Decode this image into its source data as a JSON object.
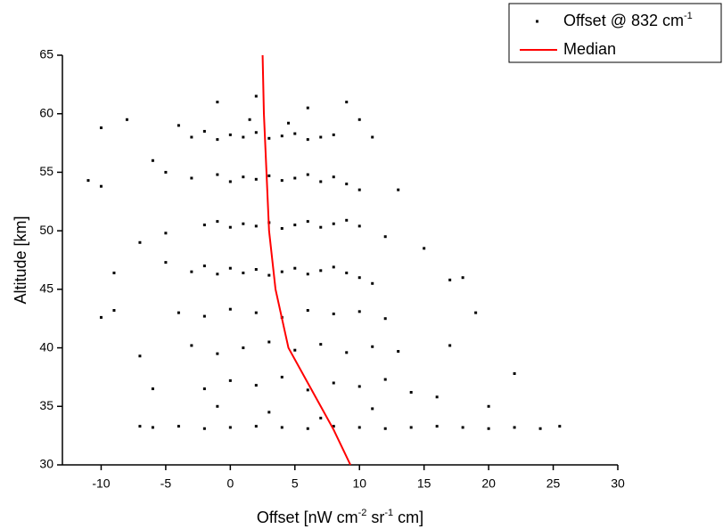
{
  "chart_data": {
    "type": "scatter",
    "xlabel": [
      "Offset [nW cm",
      "-2",
      " sr",
      "-1",
      " cm]"
    ],
    "ylabel": "Altitude [km]",
    "xlim": [
      -13,
      30
    ],
    "xticks": [
      -10,
      -5,
      0,
      5,
      10,
      15,
      20,
      25,
      30
    ],
    "ylim": [
      30,
      65
    ],
    "yticks": [
      30,
      35,
      40,
      45,
      50,
      55,
      60,
      65
    ],
    "legend": "top-right",
    "series": [
      {
        "name": [
          "Offset @ 832 cm",
          "-1"
        ],
        "color": "#000000",
        "kind": "points",
        "x": [
          -3,
          -2,
          -1,
          0,
          1,
          2,
          3,
          4,
          5,
          6,
          7,
          8,
          -4,
          1.5,
          4.5,
          6,
          2,
          -1,
          9,
          10,
          -8,
          -10,
          11,
          -3,
          -1,
          0,
          1,
          2,
          3,
          4,
          5,
          6,
          7,
          8,
          9,
          -5,
          10,
          -10,
          -11,
          13,
          -6,
          -2,
          -1,
          0,
          1,
          2,
          3,
          4,
          5,
          6,
          7,
          8,
          9,
          10,
          -5,
          -7,
          12,
          15,
          -3,
          -2,
          -1,
          0,
          1,
          2,
          3,
          4,
          5,
          6,
          7,
          8,
          9,
          10,
          11,
          -5,
          -9,
          17,
          18,
          -4,
          -2,
          0,
          2,
          4,
          6,
          8,
          10,
          12,
          -10,
          -9,
          19,
          -3,
          -1,
          1,
          3,
          5,
          7,
          9,
          11,
          13,
          -7,
          17,
          -2,
          0,
          2,
          4,
          6,
          8,
          10,
          12,
          14,
          16,
          -6,
          22,
          20,
          -6,
          -4,
          -2,
          0,
          2,
          4,
          6,
          8,
          10,
          12,
          14,
          16,
          18,
          20,
          22,
          24,
          25.5,
          -7,
          3,
          7,
          11,
          -1
        ],
        "values": [
          58,
          58.5,
          57.8,
          58.2,
          58,
          58.4,
          57.9,
          58.1,
          58.3,
          57.8,
          58,
          58.2,
          59,
          59.5,
          59.2,
          60.5,
          61.5,
          61,
          61,
          59.5,
          59.5,
          58.8,
          58,
          54.5,
          54.8,
          54.2,
          54.6,
          54.4,
          54.7,
          54.3,
          54.5,
          54.8,
          54.2,
          54.6,
          54,
          55,
          53.5,
          53.8,
          54.3,
          53.5,
          56,
          50.5,
          50.8,
          50.3,
          50.6,
          50.4,
          50.7,
          50.2,
          50.5,
          50.8,
          50.3,
          50.6,
          50.9,
          50.4,
          49.8,
          49,
          49.5,
          48.5,
          46.5,
          47,
          46.3,
          46.8,
          46.4,
          46.7,
          46.2,
          46.5,
          46.8,
          46.3,
          46.6,
          46.9,
          46.4,
          46,
          45.5,
          47.3,
          46.4,
          45.8,
          46,
          43,
          42.7,
          43.3,
          43,
          42.6,
          43.2,
          42.9,
          43.1,
          42.5,
          42.6,
          43.2,
          43,
          40.2,
          39.5,
          40,
          40.5,
          39.8,
          40.3,
          39.6,
          40.1,
          39.7,
          39.3,
          40.2,
          36.5,
          37.2,
          36.8,
          37.5,
          36.4,
          37,
          36.7,
          37.3,
          36.2,
          35.8,
          36.5,
          37.8,
          35,
          33.2,
          33.3,
          33.1,
          33.2,
          33.3,
          33.2,
          33.1,
          33.3,
          33.2,
          33.1,
          33.2,
          33.3,
          33.2,
          33.1,
          33.2,
          33.1,
          33.3,
          33.3,
          34.5,
          34,
          34.8,
          35
        ]
      },
      {
        "name": [
          "Median"
        ],
        "color": "#ff0000",
        "kind": "line",
        "x": [
          2.5,
          2.6,
          2.8,
          3.0,
          3.5,
          4.5,
          6.0,
          7.0,
          8.0,
          9.3
        ],
        "values": [
          65,
          60,
          55,
          50,
          45,
          40,
          37,
          35,
          33,
          30
        ]
      }
    ]
  }
}
